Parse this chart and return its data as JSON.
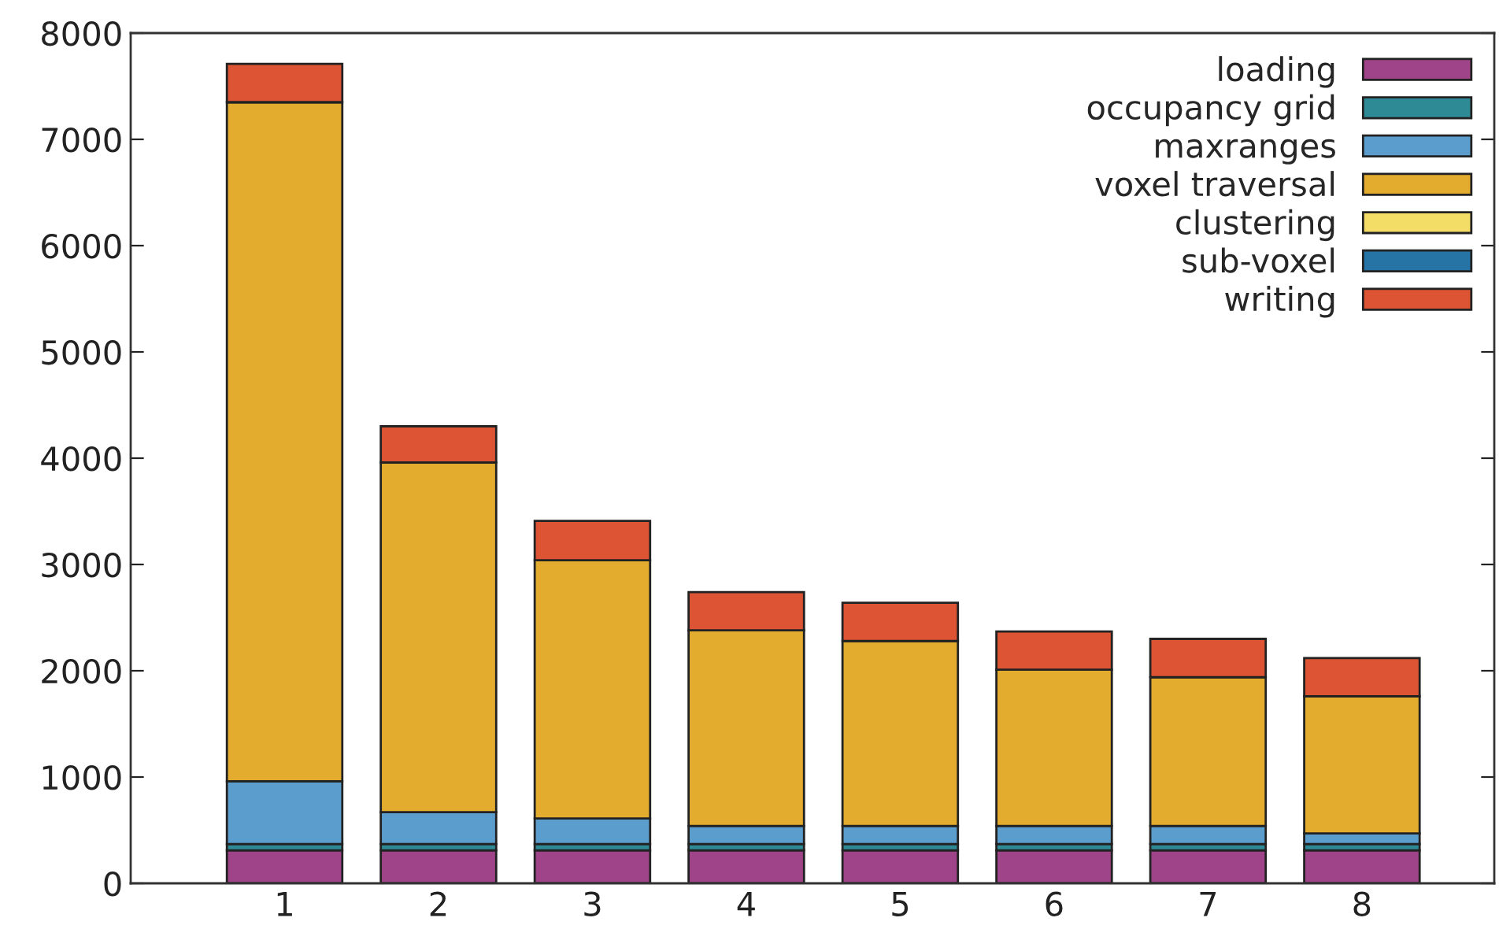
{
  "chart_data": {
    "type": "bar",
    "stacked": true,
    "categories": [
      "1",
      "2",
      "3",
      "4",
      "5",
      "6",
      "7",
      "8"
    ],
    "series": [
      {
        "name": "loading",
        "color": "#a0448a",
        "values": [
          310,
          310,
          310,
          310,
          310,
          310,
          310,
          310
        ]
      },
      {
        "name": "occupancy grid",
        "color": "#2e8a94",
        "values": [
          60,
          60,
          60,
          60,
          60,
          60,
          60,
          60
        ]
      },
      {
        "name": "maxranges",
        "color": "#5b9dcd",
        "values": [
          590,
          300,
          240,
          170,
          170,
          170,
          170,
          100
        ]
      },
      {
        "name": "voxel traversal",
        "color": "#e4ac2e",
        "values": [
          6390,
          3290,
          2430,
          1840,
          1740,
          1470,
          1400,
          1290
        ]
      },
      {
        "name": "clustering",
        "color": "#f4dd66",
        "values": [
          0,
          0,
          0,
          0,
          0,
          0,
          0,
          0
        ]
      },
      {
        "name": "sub-voxel",
        "color": "#2673a6",
        "values": [
          0,
          0,
          0,
          0,
          0,
          0,
          0,
          0
        ]
      },
      {
        "name": "writing",
        "color": "#dc5433",
        "values": [
          360,
          340,
          370,
          360,
          360,
          360,
          360,
          360
        ]
      }
    ],
    "ylim": [
      0,
      8000
    ],
    "yticks": [
      0,
      1000,
      2000,
      3000,
      4000,
      5000,
      6000,
      7000,
      8000
    ],
    "grid": false,
    "legend": "top right"
  }
}
